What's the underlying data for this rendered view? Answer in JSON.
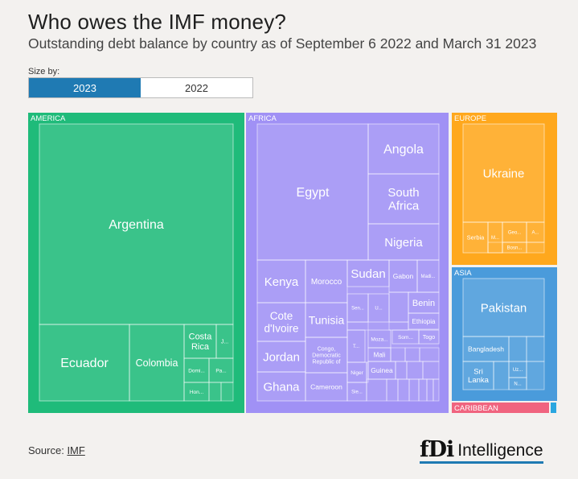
{
  "header": {
    "title": "Who owes the IMF money?",
    "subtitle": "Outstanding debt balance by country as of September 6 2022 and March 31 2023"
  },
  "controls": {
    "size_by_label": "Size by:",
    "options": [
      "2023",
      "2022"
    ],
    "selected": "2023",
    "accent": "#1f7ab3"
  },
  "footer": {
    "source_label": "Source:",
    "source_link": "IMF",
    "logo_fdi": "fDi",
    "logo_text": "Intelligence"
  },
  "chart_data": {
    "type": "treemap",
    "title": "",
    "xlabel": "",
    "ylabel": "",
    "groups": [
      {
        "name": "AMERICA",
        "color": "#1fbb7a",
        "countries": [
          {
            "name": "Argentina",
            "label": "Argentina"
          },
          {
            "name": "Ecuador",
            "label": "Ecuador"
          },
          {
            "name": "Colombia",
            "label": "Colombia"
          },
          {
            "name": "Costa Rica",
            "label": "Costa Rica"
          },
          {
            "name": "J...",
            "label": "J..."
          },
          {
            "name": "Domi...",
            "label": "Domi..."
          },
          {
            "name": "Pa...",
            "label": "Pa..."
          },
          {
            "name": "Hon...",
            "label": "Hon..."
          }
        ]
      },
      {
        "name": "AFRICA",
        "color": "#a091f5",
        "countries": [
          {
            "name": "Egypt",
            "label": "Egypt"
          },
          {
            "name": "Angola",
            "label": "Angola"
          },
          {
            "name": "South Africa",
            "label": "South Africa"
          },
          {
            "name": "Nigeria",
            "label": "Nigeria"
          },
          {
            "name": "Kenya",
            "label": "Kenya"
          },
          {
            "name": "Morocco",
            "label": "Morocco"
          },
          {
            "name": "Sudan",
            "label": "Sudan"
          },
          {
            "name": "Gabon",
            "label": "Gabon"
          },
          {
            "name": "Madi...",
            "label": "Madi..."
          },
          {
            "name": "Cote d'Ivoire",
            "label": "Cote d'Ivoire"
          },
          {
            "name": "Tunisia",
            "label": "Tunisia"
          },
          {
            "name": "Sen...",
            "label": "Sen..."
          },
          {
            "name": "U...",
            "label": "U..."
          },
          {
            "name": "Benin",
            "label": "Benin"
          },
          {
            "name": "Ethiopia",
            "label": "Ethiopia"
          },
          {
            "name": "Jordan",
            "label": "Jordan"
          },
          {
            "name": "Congo, Democratic Republic of",
            "label": "Congo, Democratic Republic of"
          },
          {
            "name": "T...",
            "label": "T..."
          },
          {
            "name": "Moza...",
            "label": "Moza..."
          },
          {
            "name": "Som...",
            "label": "Som..."
          },
          {
            "name": "Togo",
            "label": "Togo"
          },
          {
            "name": "Mali",
            "label": "Mali"
          },
          {
            "name": "Niger",
            "label": "Niger"
          },
          {
            "name": "Guinea",
            "label": "Guinea"
          },
          {
            "name": "Ghana",
            "label": "Ghana"
          },
          {
            "name": "Cameroon",
            "label": "Cameroon"
          },
          {
            "name": "Sie...",
            "label": "Sie..."
          }
        ]
      },
      {
        "name": "EUROPE",
        "color": "#ffa81d",
        "countries": [
          {
            "name": "Ukraine",
            "label": "Ukraine"
          },
          {
            "name": "Serbia",
            "label": "Serbia"
          },
          {
            "name": "M...",
            "label": "M..."
          },
          {
            "name": "Geo...",
            "label": "Geo..."
          },
          {
            "name": "A...",
            "label": "A..."
          },
          {
            "name": "Bosn...",
            "label": "Bosn..."
          }
        ]
      },
      {
        "name": "ASIA",
        "color": "#4a9bdb",
        "countries": [
          {
            "name": "Pakistan",
            "label": "Pakistan"
          },
          {
            "name": "Bangladesh",
            "label": "Bangladesh"
          },
          {
            "name": "Sri Lanka",
            "label": "Sri Lanka"
          },
          {
            "name": "Uz...",
            "label": "Uz..."
          },
          {
            "name": "N...",
            "label": "N..."
          }
        ]
      },
      {
        "name": "CARIBBEAN",
        "color": "#f0647f",
        "countries": []
      }
    ]
  }
}
